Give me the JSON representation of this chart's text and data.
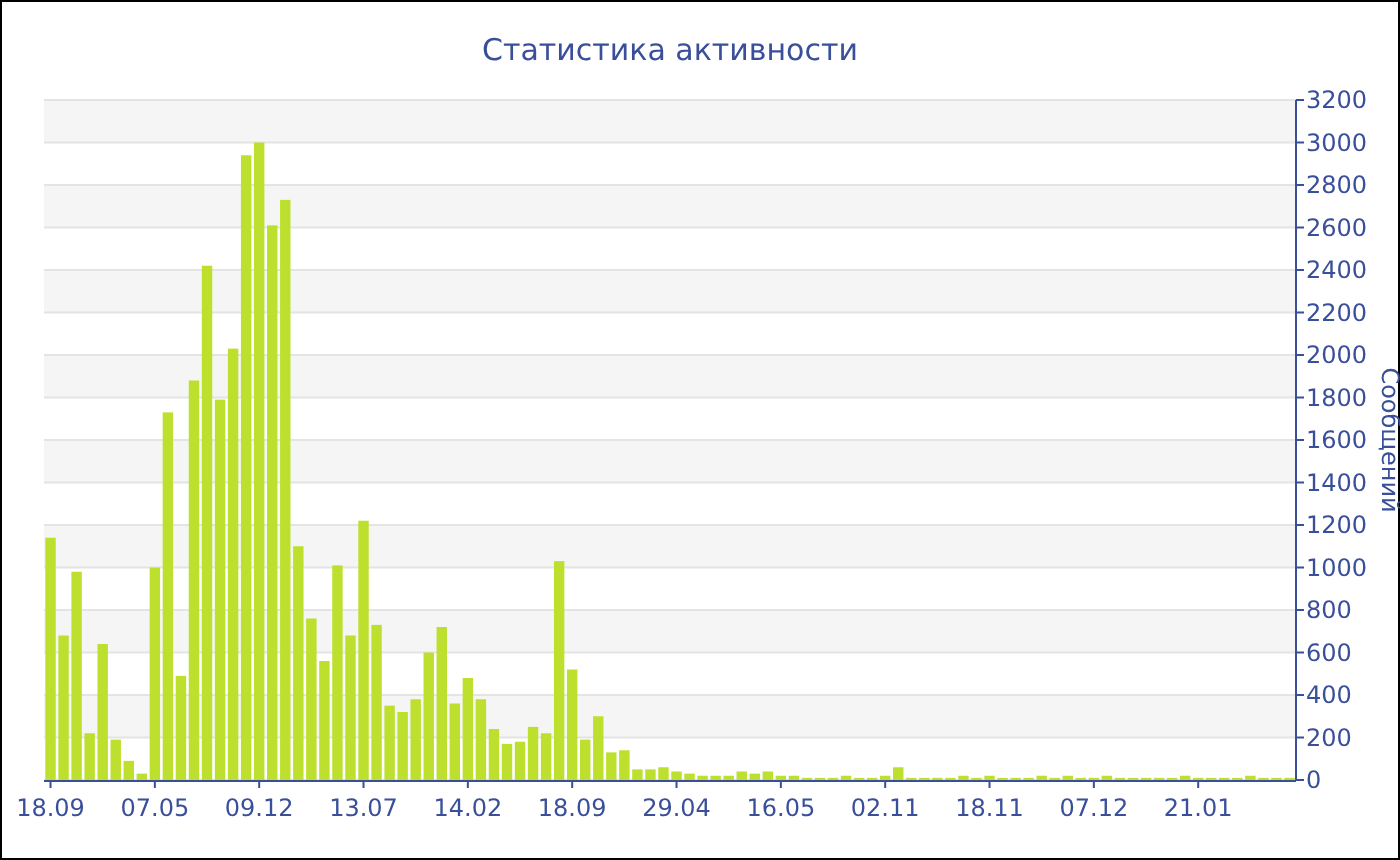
{
  "chart_data": {
    "type": "bar",
    "title": "Статистика активности",
    "ylabel": "Сообщений",
    "categories": [
      "18.09",
      null,
      null,
      null,
      null,
      null,
      null,
      null,
      "07.05",
      null,
      null,
      null,
      null,
      null,
      null,
      null,
      "09.12",
      null,
      null,
      null,
      null,
      null,
      null,
      null,
      "13.07",
      null,
      null,
      null,
      null,
      null,
      null,
      null,
      "14.02",
      null,
      null,
      null,
      null,
      null,
      null,
      null,
      "18.09",
      null,
      null,
      null,
      null,
      null,
      null,
      null,
      "29.04",
      null,
      null,
      null,
      null,
      null,
      null,
      null,
      "16.05",
      null,
      null,
      null,
      null,
      null,
      null,
      null,
      "02.11",
      null,
      null,
      null,
      null,
      null,
      null,
      null,
      "18.11",
      null,
      null,
      null,
      null,
      null,
      null,
      null,
      "07.12",
      null,
      null,
      null,
      null,
      null,
      null,
      null,
      "21.01",
      null,
      null,
      null,
      null,
      null,
      null,
      null
    ],
    "values": [
      1140,
      680,
      980,
      220,
      640,
      190,
      90,
      30,
      1000,
      1730,
      490,
      1880,
      2420,
      1790,
      2030,
      2940,
      3000,
      2610,
      2730,
      1100,
      760,
      560,
      1010,
      680,
      1220,
      730,
      350,
      320,
      380,
      600,
      720,
      360,
      480,
      380,
      240,
      170,
      180,
      250,
      220,
      1030,
      520,
      190,
      300,
      130,
      140,
      50,
      50,
      60,
      40,
      30,
      20,
      20,
      20,
      40,
      30,
      40,
      20,
      20,
      10,
      10,
      10,
      20,
      10,
      10,
      20,
      60,
      10,
      10,
      10,
      10,
      20,
      10,
      20,
      10,
      10,
      10,
      20,
      10,
      20,
      10,
      10,
      20,
      10,
      10,
      10,
      10,
      10,
      20,
      10,
      10,
      10,
      10,
      20,
      10,
      10,
      10
    ],
    "color": "#bde02e",
    "ylim": [
      0,
      3200
    ],
    "yticks": [
      0,
      200,
      400,
      600,
      800,
      1000,
      1200,
      1400,
      1600,
      1800,
      2000,
      2200,
      2400,
      2600,
      2800,
      3000,
      3200
    ],
    "grid": "y"
  }
}
